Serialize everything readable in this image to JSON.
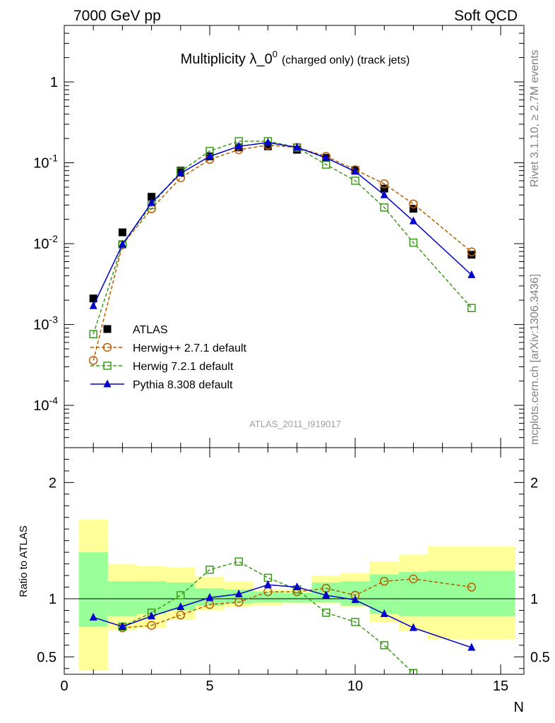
{
  "header": {
    "left": "7000 GeV pp",
    "right": "Soft QCD"
  },
  "side_labels": {
    "rivet": "Rivet 3.1.10, ≥ 2.7M events",
    "mcplots": "mcplots.cern.ch [arXiv:1306.3436]"
  },
  "chart_data": [
    {
      "type": "line",
      "title": "Multiplicity λ_0",
      "title_sup": "0",
      "title_suffix": "(charged only) (track jets)",
      "watermark": "ATLAS_2011_I919017",
      "yscale": "log",
      "ylim": [
        3e-05,
        5
      ],
      "xlim": [
        0,
        15.8
      ],
      "legend_position": "bottom-left",
      "yticklabels": [
        "1",
        "10^-1",
        "10^-2",
        "10^-3",
        "10^-4"
      ],
      "series": [
        {
          "name": "ATLAS",
          "color": "#000000",
          "marker": "filled-square",
          "x": [
            1,
            2,
            3,
            4,
            5,
            6,
            7,
            8,
            9,
            10,
            11,
            12,
            14
          ],
          "y": [
            0.0021,
            0.0138,
            0.038,
            0.08,
            0.12,
            0.155,
            0.16,
            0.145,
            0.115,
            0.081,
            0.048,
            0.027,
            0.0073
          ]
        },
        {
          "name": "Herwig++ 2.7.1 default",
          "color": "#b85c00",
          "marker": "open-circle",
          "x": [
            1,
            2,
            3,
            4,
            5,
            6,
            7,
            8,
            9,
            10,
            11,
            12,
            14
          ],
          "y": [
            0.00036,
            0.0097,
            0.027,
            0.065,
            0.11,
            0.145,
            0.165,
            0.155,
            0.12,
            0.082,
            0.055,
            0.031,
            0.0079
          ]
        },
        {
          "name": "Herwig 7.2.1 default",
          "color": "#3a9a1a",
          "marker": "open-square",
          "x": [
            1,
            2,
            3,
            4,
            5,
            6,
            7,
            8,
            9,
            10,
            11,
            12,
            14
          ],
          "y": [
            0.00076,
            0.0098,
            0.03,
            0.078,
            0.14,
            0.185,
            0.185,
            0.155,
            0.095,
            0.06,
            0.028,
            0.0103,
            0.0016
          ]
        },
        {
          "name": "Pythia 8.308 default",
          "color": "#0000cc",
          "marker": "filled-triangle",
          "x": [
            1,
            2,
            3,
            4,
            5,
            6,
            7,
            8,
            9,
            10,
            11,
            12,
            14
          ],
          "y": [
            0.0017,
            0.0098,
            0.032,
            0.074,
            0.12,
            0.16,
            0.178,
            0.155,
            0.115,
            0.078,
            0.04,
            0.019,
            0.0041
          ]
        }
      ]
    },
    {
      "type": "line",
      "ylabel": "Ratio to ATLAS",
      "xlabel": "N",
      "ylim": [
        0.35,
        2.3
      ],
      "xlim": [
        0,
        15.8
      ],
      "yticklabels": [
        "2",
        "1",
        "0.5"
      ],
      "xticklabels": [
        "0",
        "5",
        "10",
        "15"
      ],
      "bands": {
        "x_edges": [
          0.5,
          1.5,
          2.5,
          3.5,
          4.5,
          5.5,
          6.5,
          7.5,
          8.5,
          9.5,
          10.5,
          11.5,
          12.5,
          15.5
        ],
        "yellow": [
          [
            0.38,
            1.68
          ],
          [
            0.73,
            1.3
          ],
          [
            0.75,
            1.28
          ],
          [
            0.82,
            1.27
          ],
          [
            0.9,
            1.19
          ],
          [
            0.93,
            1.15
          ],
          [
            0.94,
            1.08
          ],
          [
            0.96,
            1.08
          ],
          [
            0.96,
            1.2
          ],
          [
            0.93,
            1.22
          ],
          [
            0.8,
            1.32
          ],
          [
            0.72,
            1.38
          ],
          [
            0.65,
            1.45
          ]
        ],
        "green": [
          [
            0.76,
            1.4
          ],
          [
            0.85,
            1.15
          ],
          [
            0.87,
            1.15
          ],
          [
            0.9,
            1.14
          ],
          [
            0.94,
            1.09
          ],
          [
            0.96,
            1.08
          ],
          [
            0.97,
            1.06
          ],
          [
            0.97,
            1.05
          ],
          [
            0.97,
            1.14
          ],
          [
            0.94,
            1.15
          ],
          [
            0.87,
            1.21
          ],
          [
            0.85,
            1.23
          ],
          [
            0.85,
            1.24
          ]
        ]
      },
      "series": [
        {
          "name": "Herwig++ 2.7.1 default",
          "color": "#b85c00",
          "x": [
            2,
            3,
            4,
            5,
            6,
            7,
            8,
            9,
            10,
            11,
            12,
            14
          ],
          "y": [
            0.75,
            0.77,
            0.86,
            0.95,
            0.97,
            1.06,
            1.06,
            1.09,
            1.03,
            1.15,
            1.17,
            1.1
          ]
        },
        {
          "name": "Herwig 7.2.1 default",
          "color": "#3a9a1a",
          "x": [
            2,
            3,
            4,
            5,
            6,
            7,
            8,
            9,
            10,
            11,
            12
          ],
          "y": [
            0.76,
            0.88,
            1.03,
            1.25,
            1.32,
            1.18,
            1.08,
            0.88,
            0.8,
            0.6,
            0.36
          ]
        },
        {
          "name": "Pythia 8.308 default",
          "color": "#0000cc",
          "x": [
            1,
            2,
            3,
            4,
            5,
            6,
            7,
            8,
            9,
            10,
            11,
            12,
            14
          ],
          "y": [
            0.84,
            0.76,
            0.85,
            0.93,
            1.01,
            1.04,
            1.12,
            1.1,
            1.03,
            0.99,
            0.87,
            0.75,
            0.58
          ]
        }
      ]
    }
  ]
}
